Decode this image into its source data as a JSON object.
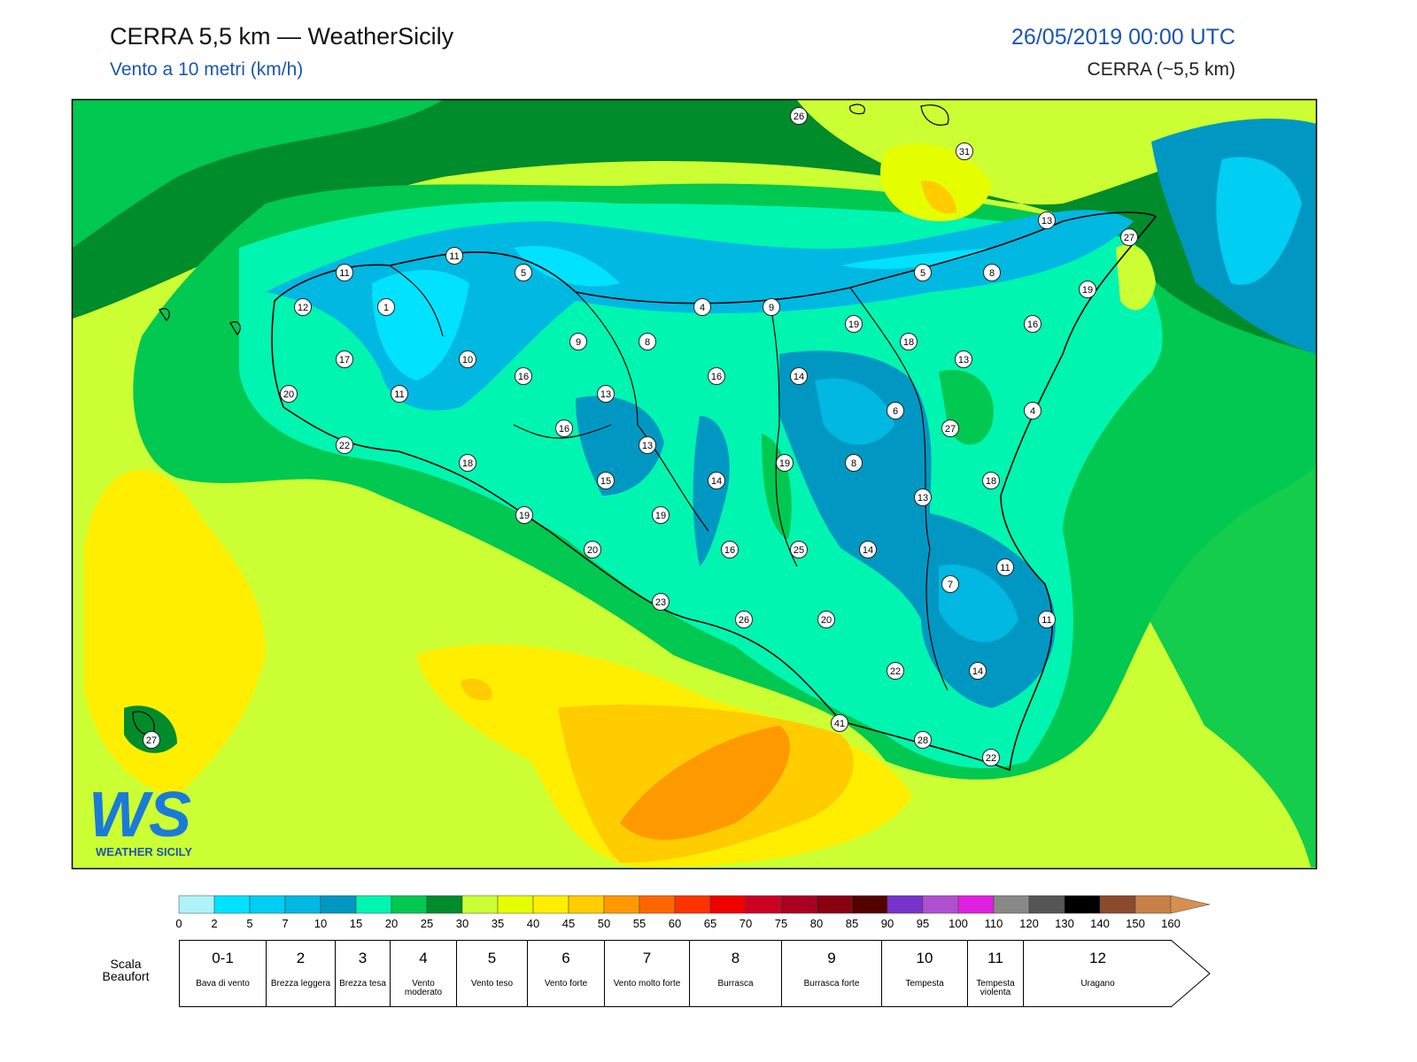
{
  "header": {
    "title": "CERRA 5,5 km — WeatherSicily",
    "subtitle": "Vento a 10 metri (km/h)",
    "date": "26/05/2019 00:00 UTC",
    "model": "CERRA (~5,5 km)"
  },
  "map": {
    "stations": [
      "26",
      "31",
      "13",
      "27",
      "11",
      "11",
      "5",
      "5",
      "8",
      "19",
      "12",
      "1",
      "4",
      "9",
      "19",
      "16",
      "9",
      "8",
      "18",
      "17",
      "10",
      "13",
      "16",
      "16",
      "14",
      "11",
      "13",
      "20",
      "6",
      "4",
      "16",
      "27",
      "13",
      "22",
      "18",
      "19",
      "8",
      "15",
      "14",
      "18",
      "13",
      "19",
      "19",
      "20",
      "16",
      "25",
      "14",
      "11",
      "7",
      "23",
      "26",
      "20",
      "11",
      "22",
      "14",
      "41",
      "28",
      "22",
      "27"
    ]
  },
  "logo": {
    "mark": "WS",
    "name": "WEATHER SICILY"
  },
  "colorbar": {
    "ticks": [
      "0",
      "2",
      "5",
      "7",
      "10",
      "15",
      "20",
      "25",
      "30",
      "35",
      "40",
      "45",
      "50",
      "55",
      "60",
      "65",
      "70",
      "75",
      "80",
      "85",
      "90",
      "95",
      "100",
      "110",
      "120",
      "130",
      "140",
      "150",
      "160"
    ],
    "colors": [
      "#aef2fa",
      "#00e2ff",
      "#00cef2",
      "#00b8e2",
      "#0098c2",
      "#00f5b0",
      "#00c850",
      "#008c2a",
      "#ccff33",
      "#e6ff00",
      "#ffee00",
      "#ffcc00",
      "#ff9900",
      "#ff6600",
      "#ff3300",
      "#ee0000",
      "#cc0022",
      "#aa0022",
      "#880011",
      "#550000",
      "#7733cc",
      "#b050d0",
      "#e020e0",
      "#888888",
      "#555555",
      "#000000",
      "#8b4a2b",
      "#c88048",
      "#d89050"
    ]
  },
  "beaufort": {
    "title": "Scala Beaufort",
    "levels": [
      {
        "force": "0-1",
        "label": "Bava di vento"
      },
      {
        "force": "2",
        "label": "Brezza leggera"
      },
      {
        "force": "3",
        "label": "Brezza tesa"
      },
      {
        "force": "4",
        "label": "Vento moderato"
      },
      {
        "force": "5",
        "label": "Vento teso"
      },
      {
        "force": "6",
        "label": "Vento forte"
      },
      {
        "force": "7",
        "label": "Vento molto forte"
      },
      {
        "force": "8",
        "label": "Burrasca"
      },
      {
        "force": "9",
        "label": "Burrasca forte"
      },
      {
        "force": "10",
        "label": "Tempesta"
      },
      {
        "force": "11",
        "label": "Tempesta violenta"
      },
      {
        "force": "12",
        "label": "Uragano"
      }
    ]
  }
}
